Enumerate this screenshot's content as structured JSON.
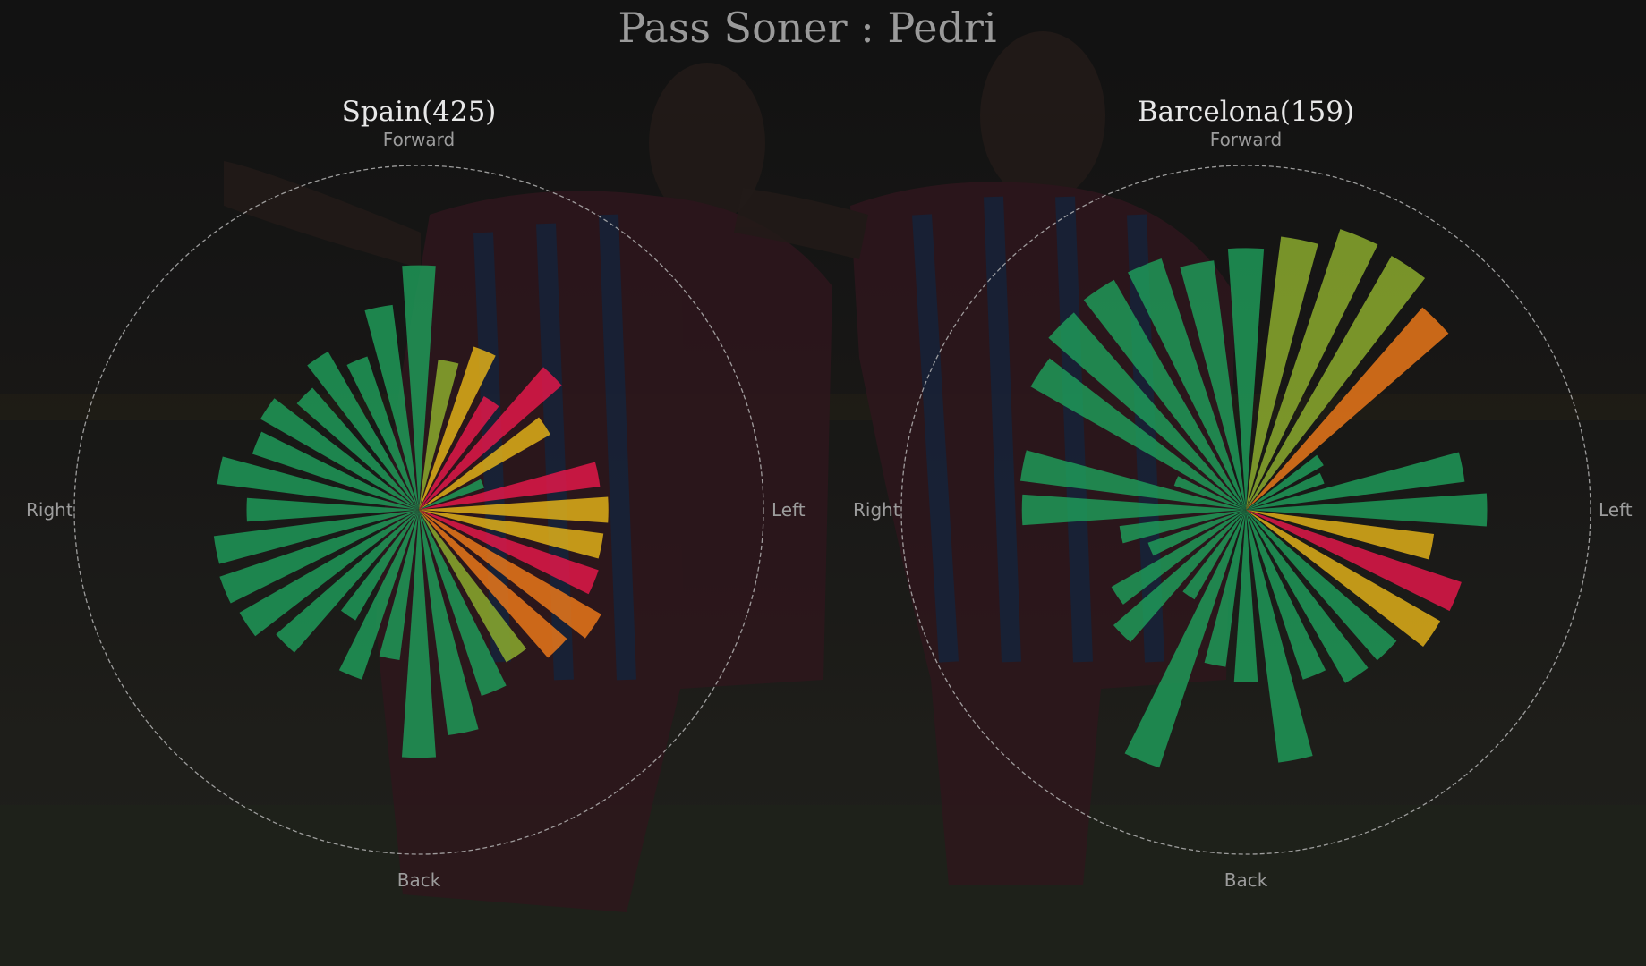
{
  "chart_data": {
    "type": "polar-bar",
    "title": "Pass Soner : Pedri",
    "background": "dim photo of two players in red-and-blue striped kits celebrating in a stadium",
    "color_scale": [
      "#1f9e5a",
      "#8fb02e",
      "#e6b419",
      "#f07a1a",
      "#e8174a"
    ],
    "directions": {
      "top": "Forward",
      "bottom": "Back",
      "left": "Right",
      "right": "Left"
    },
    "panels": [
      {
        "title": "Spain(425)",
        "team": "Spain",
        "total": 425,
        "r_max": 1.0,
        "bins": 32,
        "angles_deg": [
          0,
          11.25,
          22.5,
          33.75,
          45,
          56.25,
          67.5,
          78.75,
          90,
          101.25,
          112.5,
          123.75,
          135,
          146.25,
          157.5,
          168.75,
          180,
          191.25,
          202.5,
          213.75,
          225,
          236.25,
          247.5,
          258.75,
          270,
          281.25,
          292.5,
          303.75,
          315,
          326.25,
          337.5,
          348.75
        ],
        "radii": [
          0.55,
          0.53,
          0.2,
          0.44,
          0.55,
          0.38,
          0.5,
          0.44,
          0.71,
          0.6,
          0.47,
          0.53,
          0.47,
          0.53,
          0.51,
          0.59,
          0.5,
          0.6,
          0.61,
          0.6,
          0.55,
          0.37,
          0.52,
          0.44,
          0.72,
          0.66,
          0.57,
          0.51,
          0.57,
          0.61,
          0.55,
          0.54
        ],
        "colors": [
          "#e6b419",
          "#e8174a",
          "#1f9e5a",
          "#e6b419",
          "#e8174a",
          "#e8174a",
          "#e6b419",
          "#8fb02e",
          "#1f9e5a",
          "#1f9e5a",
          "#1f9e5a",
          "#1f9e5a",
          "#1f9e5a",
          "#1f9e5a",
          "#1f9e5a",
          "#1f9e5a",
          "#1f9e5a",
          "#1f9e5a",
          "#1f9e5a",
          "#1f9e5a",
          "#1f9e5a",
          "#1f9e5a",
          "#1f9e5a",
          "#1f9e5a",
          "#1f9e5a",
          "#1f9e5a",
          "#1f9e5a",
          "#8fb02e",
          "#f07a1a",
          "#f07a1a",
          "#e8174a",
          "#e6b419"
        ]
      },
      {
        "title": "Barcelona(159)",
        "team": "Barcelona",
        "total": 159,
        "r_max": 1.0,
        "bins": 32,
        "angles_deg": [
          0,
          11.25,
          22.5,
          33.75,
          45,
          56.25,
          67.5,
          78.75,
          90,
          101.25,
          112.5,
          123.75,
          135,
          146.25,
          157.5,
          168.75,
          180,
          191.25,
          202.5,
          213.75,
          225,
          236.25,
          247.5,
          258.75,
          270,
          281.25,
          292.5,
          303.75,
          315,
          326.25,
          337.5,
          348.75
        ],
        "radii": [
          0.7,
          0.64,
          0.24,
          0.26,
          0.78,
          0.85,
          0.86,
          0.8,
          0.76,
          0.73,
          0.77,
          0.77,
          0.76,
          0.72,
          0.22,
          0.66,
          0.65,
          0.37,
          0.3,
          0.45,
          0.51,
          0.3,
          0.79,
          0.46,
          0.5,
          0.74,
          0.52,
          0.58,
          0.58,
          0.65,
          0.66,
          0.55
        ],
        "colors": [
          "#1f9e5a",
          "#1f9e5a",
          "#1f9e5a",
          "#1f9e5a",
          "#f07a1a",
          "#8fb02e",
          "#8fb02e",
          "#8fb02e",
          "#1f9e5a",
          "#1f9e5a",
          "#1f9e5a",
          "#1f9e5a",
          "#1f9e5a",
          "#1f9e5a",
          "#1f9e5a",
          "#1f9e5a",
          "#1f9e5a",
          "#1f9e5a",
          "#1f9e5a",
          "#1f9e5a",
          "#1f9e5a",
          "#1f9e5a",
          "#1f9e5a",
          "#1f9e5a",
          "#1f9e5a",
          "#1f9e5a",
          "#1f9e5a",
          "#1f9e5a",
          "#1f9e5a",
          "#e6b419",
          "#e8174a",
          "#e6b419"
        ]
      }
    ]
  }
}
